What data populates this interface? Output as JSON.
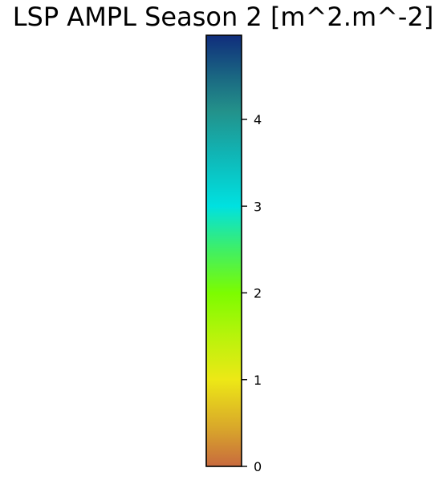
{
  "chart_data": {
    "type": "colorbar",
    "title": "LSP AMPL Season 2 [m^2.m^-2]",
    "orientation": "vertical",
    "range": [
      0,
      4.97
    ],
    "ticks": [
      {
        "value": 0,
        "label": "0"
      },
      {
        "value": 1,
        "label": "1"
      },
      {
        "value": 2,
        "label": "2"
      },
      {
        "value": 3,
        "label": "3"
      },
      {
        "value": 4,
        "label": "4"
      }
    ],
    "colormap": [
      {
        "value": 0.0,
        "color": "#c86a3e"
      },
      {
        "value": 0.45,
        "color": "#d9a82a"
      },
      {
        "value": 1.0,
        "color": "#ede816"
      },
      {
        "value": 1.5,
        "color": "#b8f30b"
      },
      {
        "value": 2.0,
        "color": "#7cfc00"
      },
      {
        "value": 2.5,
        "color": "#3fef66"
      },
      {
        "value": 3.0,
        "color": "#00e1e0"
      },
      {
        "value": 3.6,
        "color": "#10b5b5"
      },
      {
        "value": 4.1,
        "color": "#23918a"
      },
      {
        "value": 4.5,
        "color": "#1a6682"
      },
      {
        "value": 4.97,
        "color": "#102d7c"
      }
    ],
    "frame_color": "#000000"
  }
}
